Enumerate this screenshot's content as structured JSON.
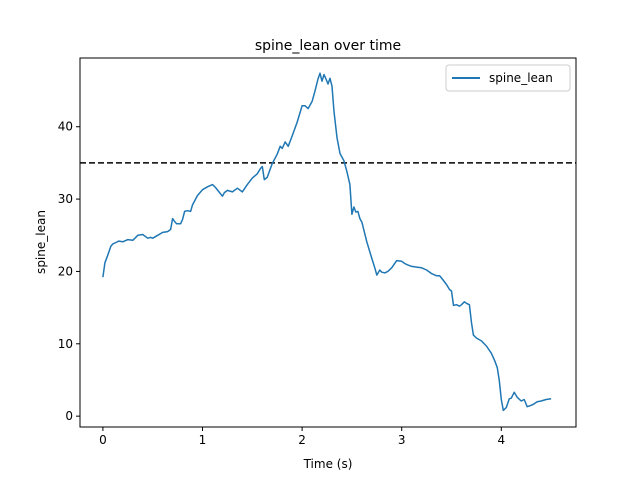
{
  "chart_data": {
    "type": "line",
    "title": "spine_lean over time",
    "xlabel": "Time (s)",
    "ylabel": "spine_lean",
    "xlim": [
      -0.23,
      4.75
    ],
    "ylim": [
      -1.5,
      49.5
    ],
    "xticks": [
      0,
      1,
      2,
      3,
      4
    ],
    "yticks": [
      0,
      10,
      20,
      30,
      40
    ],
    "grid": false,
    "legend": {
      "placement": "top-right"
    },
    "reference_line": {
      "y": 35,
      "style": "dashed",
      "color": "#000000"
    },
    "series": [
      {
        "name": "spine_lean",
        "color": "#1f77b4",
        "x": [
          0,
          0.02,
          0.05,
          0.08,
          0.1,
          0.13,
          0.16,
          0.2,
          0.25,
          0.3,
          0.35,
          0.4,
          0.45,
          0.48,
          0.5,
          0.55,
          0.6,
          0.65,
          0.68,
          0.7,
          0.72,
          0.74,
          0.78,
          0.8,
          0.82,
          0.85,
          0.88,
          0.9,
          0.95,
          1.0,
          1.05,
          1.1,
          1.13,
          1.16,
          1.2,
          1.22,
          1.25,
          1.3,
          1.35,
          1.4,
          1.45,
          1.5,
          1.55,
          1.58,
          1.6,
          1.62,
          1.65,
          1.7,
          1.75,
          1.78,
          1.8,
          1.83,
          1.86,
          1.9,
          1.95,
          2.0,
          2.03,
          2.06,
          2.1,
          2.13,
          2.16,
          2.18,
          2.2,
          2.22,
          2.24,
          2.26,
          2.28,
          2.3,
          2.32,
          2.35,
          2.38,
          2.42,
          2.45,
          2.48,
          2.5,
          2.52,
          2.54,
          2.56,
          2.58,
          2.6,
          2.65,
          2.7,
          2.73,
          2.75,
          2.78,
          2.8,
          2.83,
          2.86,
          2.9,
          2.95,
          3.0,
          3.03,
          3.06,
          3.1,
          3.15,
          3.2,
          3.25,
          3.3,
          3.35,
          3.38,
          3.4,
          3.45,
          3.48,
          3.5,
          3.52,
          3.55,
          3.58,
          3.6,
          3.63,
          3.65,
          3.68,
          3.7,
          3.72,
          3.75,
          3.8,
          3.85,
          3.9,
          3.93,
          3.96,
          3.98,
          4.0,
          4.02,
          4.05,
          4.08,
          4.1,
          4.13,
          4.16,
          4.2,
          4.23,
          4.26,
          4.3,
          4.33,
          4.36,
          4.4,
          4.45,
          4.5
        ],
        "y": [
          19.2,
          21.2,
          22.3,
          23.5,
          23.8,
          24.0,
          24.2,
          24.1,
          24.4,
          24.3,
          25.0,
          25.1,
          24.6,
          24.7,
          24.6,
          25.0,
          25.4,
          25.5,
          25.8,
          27.3,
          26.9,
          26.6,
          26.6,
          27.2,
          28.3,
          28.4,
          28.3,
          29.2,
          30.5,
          31.3,
          31.7,
          32.0,
          31.6,
          31.1,
          30.4,
          30.9,
          31.2,
          31.0,
          31.5,
          31.0,
          32.0,
          32.9,
          33.5,
          34.2,
          34.5,
          32.7,
          33.0,
          34.9,
          36.2,
          37.3,
          37.0,
          37.9,
          37.3,
          38.7,
          40.6,
          42.9,
          42.9,
          42.5,
          43.5,
          45.0,
          46.6,
          47.4,
          46.3,
          47.2,
          46.6,
          45.9,
          46.7,
          45.6,
          42.1,
          38.5,
          36.3,
          35.3,
          33.8,
          32.0,
          27.9,
          28.9,
          28.2,
          28.3,
          27.3,
          26.8,
          24.1,
          21.8,
          20.5,
          19.5,
          20.2,
          19.9,
          19.8,
          20.0,
          20.5,
          21.5,
          21.4,
          21.1,
          20.9,
          20.7,
          20.6,
          20.5,
          20.2,
          19.7,
          19.4,
          19.4,
          19.1,
          18.2,
          17.5,
          17.3,
          15.3,
          15.4,
          15.2,
          15.4,
          15.8,
          15.6,
          15.4,
          13.0,
          11.2,
          10.8,
          10.4,
          9.7,
          8.7,
          7.8,
          6.7,
          4.9,
          2.3,
          0.8,
          1.2,
          2.4,
          2.5,
          3.3,
          2.6,
          2.1,
          2.3,
          1.3,
          1.5,
          1.7,
          2.0,
          2.1,
          2.3,
          2.4
        ]
      }
    ]
  }
}
